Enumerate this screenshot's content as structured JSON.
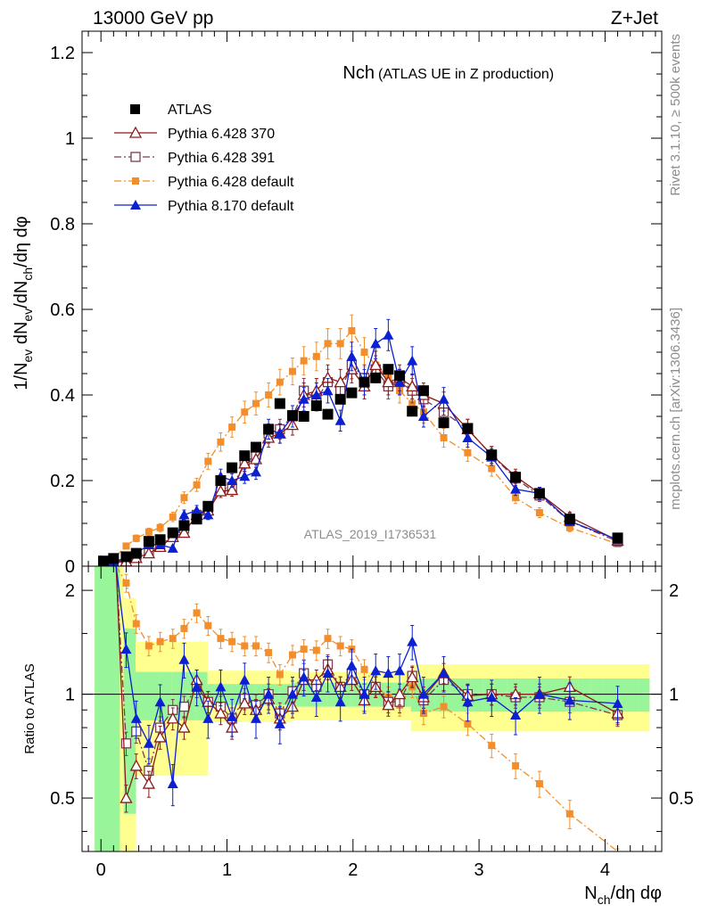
{
  "header": {
    "left": "13000 GeV pp",
    "right": "Z+Jet"
  },
  "side_labels": {
    "rivet": "Rivet 3.1.10, ≥ 500k events",
    "mcplots": "mcplots.cern.ch [arXiv:1306.3436]"
  },
  "chart_data": [
    {
      "type": "scatter",
      "panel": "main",
      "title": "Nch",
      "subtitle": "(ATLAS UE in Z production)",
      "xlabel": "N_ch/dη dφ",
      "ylabel": "1/N_ev dN_ev/dN_ch/dη dφ",
      "xlim": [
        -0.15,
        4.45
      ],
      "ylim": [
        0,
        1.25
      ],
      "yticks": [
        "0",
        "0.2",
        "0.4",
        "0.6",
        "0.8",
        "1",
        "1.2"
      ],
      "watermark": "ATLAS_2019_I1736531",
      "legend_position": "top-left",
      "x": [
        0.02,
        0.1,
        0.2,
        0.28,
        0.38,
        0.47,
        0.57,
        0.66,
        0.76,
        0.85,
        0.95,
        1.04,
        1.14,
        1.23,
        1.33,
        1.42,
        1.52,
        1.61,
        1.71,
        1.8,
        1.9,
        1.99,
        2.09,
        2.18,
        2.28,
        2.37,
        2.47,
        2.56,
        2.72,
        2.91,
        3.1,
        3.29,
        3.48,
        3.72,
        4.1
      ],
      "series": [
        {
          "name": "ATLAS",
          "color": "#000000",
          "marker": "filled-square",
          "line": "none",
          "values": [
            0.012,
            0.018,
            0.022,
            0.03,
            0.058,
            0.062,
            0.078,
            0.095,
            0.11,
            0.14,
            0.2,
            0.23,
            0.258,
            0.278,
            0.32,
            0.38,
            0.352,
            0.35,
            0.375,
            0.355,
            0.39,
            0.405,
            0.43,
            0.44,
            0.46,
            0.445,
            0.362,
            0.41,
            0.335,
            0.322,
            0.26,
            0.208,
            0.17,
            0.11,
            0.066
          ]
        },
        {
          "name": "Pythia 6.428 370",
          "color": "#8b1a1a",
          "marker": "open-triangle",
          "line": "solid",
          "values": [
            0.006,
            0.009,
            0.011,
            0.019,
            0.03,
            0.045,
            0.068,
            0.078,
            0.12,
            0.13,
            0.175,
            0.178,
            0.24,
            0.25,
            0.3,
            0.31,
            0.33,
            0.4,
            0.41,
            0.44,
            0.43,
            0.46,
            0.42,
            0.47,
            0.43,
            0.44,
            0.42,
            0.4,
            0.38,
            0.32,
            0.26,
            0.21,
            0.17,
            0.115,
            0.06
          ]
        },
        {
          "name": "Pythia 6.428 391",
          "color": "#7a3b50",
          "marker": "open-square",
          "line": "dash-dot",
          "values": [
            0.006,
            0.01,
            0.015,
            0.023,
            0.035,
            0.048,
            0.07,
            0.088,
            0.12,
            0.135,
            0.18,
            0.185,
            0.24,
            0.26,
            0.31,
            0.32,
            0.35,
            0.41,
            0.39,
            0.43,
            0.41,
            0.47,
            0.44,
            0.46,
            0.42,
            0.43,
            0.41,
            0.39,
            0.36,
            0.32,
            0.26,
            0.205,
            0.165,
            0.105,
            0.058
          ]
        },
        {
          "name": "Pythia 6.428 default",
          "color": "#f28e2b",
          "marker": "filled-square",
          "line": "dash-dot",
          "values": [
            0.01,
            0.018,
            0.047,
            0.065,
            0.08,
            0.09,
            0.115,
            0.16,
            0.19,
            0.245,
            0.29,
            0.325,
            0.36,
            0.38,
            0.4,
            0.43,
            0.455,
            0.48,
            0.49,
            0.52,
            0.52,
            0.55,
            0.5,
            0.47,
            0.44,
            0.41,
            0.38,
            0.36,
            0.3,
            0.265,
            0.228,
            0.16,
            0.125,
            0.09,
            0.052
          ]
        },
        {
          "name": "Pythia 8.170 default",
          "color": "#0b1fd3",
          "marker": "filled-triangle",
          "line": "solid",
          "values": [
            0.005,
            0.01,
            0.02,
            0.03,
            0.05,
            0.05,
            0.042,
            0.12,
            0.13,
            0.12,
            0.21,
            0.2,
            0.21,
            0.22,
            0.32,
            0.31,
            0.35,
            0.39,
            0.4,
            0.41,
            0.34,
            0.49,
            0.43,
            0.52,
            0.54,
            0.43,
            0.48,
            0.35,
            0.39,
            0.3,
            0.255,
            0.18,
            0.17,
            0.105,
            0.062
          ]
        }
      ]
    },
    {
      "type": "scatter",
      "panel": "ratio",
      "ylabel": "Ratio to ATLAS",
      "xlabel": "N_ch/dη dφ",
      "xlim": [
        -0.15,
        4.45
      ],
      "ylim": [
        0.35,
        2.35
      ],
      "yticks": [
        "0.5",
        "1",
        "2"
      ],
      "xticks": [
        "0",
        "1",
        "2",
        "3",
        "4"
      ],
      "band_1sigma_color": "#99f59a",
      "band_2sigma_color": "#ffff8f",
      "x": [
        0.2,
        0.28,
        0.38,
        0.47,
        0.57,
        0.66,
        0.76,
        0.85,
        0.95,
        1.04,
        1.14,
        1.23,
        1.33,
        1.42,
        1.52,
        1.61,
        1.71,
        1.8,
        1.9,
        1.99,
        2.09,
        2.18,
        2.28,
        2.37,
        2.47,
        2.56,
        2.72,
        2.91,
        3.1,
        3.29,
        3.48,
        3.72,
        4.1
      ],
      "series": [
        {
          "name": "Pythia 6.428 370",
          "values": [
            0.5,
            0.62,
            0.55,
            0.75,
            0.85,
            0.8,
            1.1,
            0.95,
            0.88,
            0.8,
            0.94,
            0.9,
            0.97,
            0.85,
            0.92,
            1.1,
            1.1,
            1.18,
            1.05,
            1.1,
            0.96,
            1.05,
            0.93,
            1.0,
            1.12,
            0.98,
            1.15,
            0.99,
            1.0,
            1.0,
            1.0,
            1.05,
            0.88
          ]
        },
        {
          "name": "Pythia 6.428 391",
          "values": [
            0.72,
            0.78,
            0.6,
            0.8,
            0.9,
            0.92,
            1.05,
            0.95,
            0.92,
            0.85,
            0.97,
            0.93,
            1.0,
            0.88,
            1.02,
            1.15,
            1.05,
            1.22,
            1.05,
            1.15,
            1.0,
            1.05,
            0.95,
            0.95,
            1.13,
            0.96,
            1.1,
            1.0,
            1.0,
            0.98,
            0.98,
            0.95,
            0.87
          ]
        },
        {
          "name": "Pythia 6.428 default",
          "values": [
            2.1,
            1.6,
            1.38,
            1.42,
            1.45,
            1.55,
            1.72,
            1.58,
            1.45,
            1.42,
            1.38,
            1.38,
            1.32,
            1.14,
            1.3,
            1.35,
            1.34,
            1.45,
            1.38,
            1.35,
            1.18,
            1.06,
            0.98,
            0.93,
            1.05,
            0.88,
            0.92,
            0.82,
            0.71,
            0.62,
            0.55,
            0.45,
            0.32
          ]
        },
        {
          "name": "Pythia 8.170 default",
          "values": [
            1.35,
            0.85,
            0.72,
            0.95,
            0.55,
            1.26,
            1.05,
            0.85,
            1.05,
            0.86,
            1.1,
            0.85,
            1.0,
            0.82,
            1.0,
            1.12,
            0.98,
            1.15,
            0.95,
            1.21,
            1.0,
            1.17,
            1.15,
            1.17,
            1.42,
            1.0,
            1.15,
            0.95,
            0.98,
            0.87,
            1.0,
            0.96,
            0.94
          ]
        }
      ]
    }
  ]
}
